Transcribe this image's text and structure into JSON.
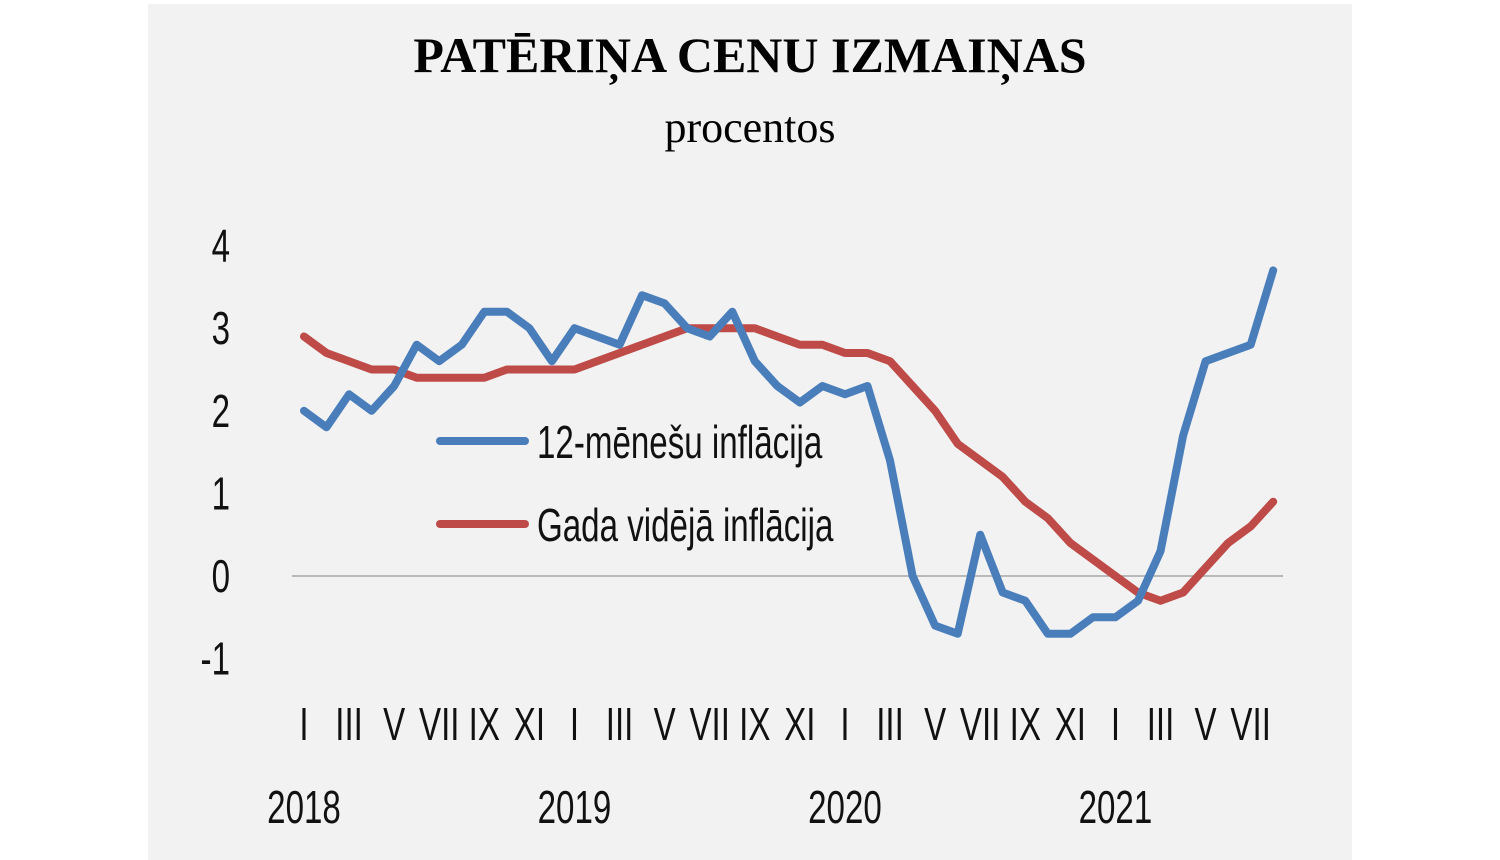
{
  "chart_data": {
    "type": "line",
    "title": "PATĒRIŅA CENU IZMAIŅAS",
    "subtitle": "procentos",
    "xlabel": "",
    "ylabel": "",
    "ylim": [
      -1,
      4
    ],
    "yticks": [
      "4",
      "3",
      "2",
      "1",
      "0",
      "-1"
    ],
    "ytick_values": [
      4,
      3,
      2,
      1,
      0,
      -1
    ],
    "x_month_ticks": [
      {
        "month_index": 0,
        "label": "I"
      },
      {
        "month_index": 2,
        "label": "III"
      },
      {
        "month_index": 4,
        "label": "V"
      },
      {
        "month_index": 6,
        "label": "VII"
      },
      {
        "month_index": 8,
        "label": "IX"
      },
      {
        "month_index": 10,
        "label": "XI"
      },
      {
        "month_index": 12,
        "label": "I"
      },
      {
        "month_index": 14,
        "label": "III"
      },
      {
        "month_index": 16,
        "label": "V"
      },
      {
        "month_index": 18,
        "label": "VII"
      },
      {
        "month_index": 20,
        "label": "IX"
      },
      {
        "month_index": 22,
        "label": "XI"
      },
      {
        "month_index": 24,
        "label": "I"
      },
      {
        "month_index": 26,
        "label": "III"
      },
      {
        "month_index": 28,
        "label": "V"
      },
      {
        "month_index": 30,
        "label": "VII"
      },
      {
        "month_index": 32,
        "label": "IX"
      },
      {
        "month_index": 34,
        "label": "XI"
      },
      {
        "month_index": 36,
        "label": "I"
      },
      {
        "month_index": 38,
        "label": "III"
      },
      {
        "month_index": 40,
        "label": "V"
      },
      {
        "month_index": 42,
        "label": "VII"
      }
    ],
    "x_year_ticks": [
      {
        "month_index": 0,
        "label": "2018"
      },
      {
        "month_index": 12,
        "label": "2019"
      },
      {
        "month_index": 24,
        "label": "2020"
      },
      {
        "month_index": 36,
        "label": "2021"
      }
    ],
    "x_range": "2018-01 to 2021-08 (monthly)",
    "grid": false,
    "zero_line": true,
    "legend": "center-left",
    "series": [
      {
        "name": "12-mēnešu inflācija",
        "color": "#4a7ebb",
        "values": [
          2.0,
          1.8,
          2.2,
          2.0,
          2.3,
          2.8,
          2.6,
          2.8,
          3.2,
          3.2,
          3.0,
          2.6,
          3.0,
          2.9,
          2.8,
          3.4,
          3.3,
          3.0,
          2.9,
          3.2,
          2.6,
          2.3,
          2.1,
          2.3,
          2.2,
          2.3,
          1.4,
          0.0,
          -0.6,
          -0.7,
          0.5,
          -0.2,
          -0.3,
          -0.7,
          -0.7,
          -0.5,
          -0.5,
          -0.3,
          0.3,
          1.7,
          2.6,
          2.7,
          2.8,
          3.7
        ]
      },
      {
        "name": "Gada vidējā inflācija",
        "color": "#be4b48",
        "values": [
          2.9,
          2.7,
          2.6,
          2.5,
          2.5,
          2.4,
          2.4,
          2.4,
          2.4,
          2.5,
          2.5,
          2.5,
          2.5,
          2.6,
          2.7,
          2.8,
          2.9,
          3.0,
          3.0,
          3.0,
          3.0,
          2.9,
          2.8,
          2.8,
          2.7,
          2.7,
          2.6,
          2.3,
          2.0,
          1.6,
          1.4,
          1.2,
          0.9,
          0.7,
          0.4,
          0.2,
          0.0,
          -0.2,
          -0.3,
          -0.2,
          0.1,
          0.4,
          0.6,
          0.9
        ]
      }
    ]
  }
}
